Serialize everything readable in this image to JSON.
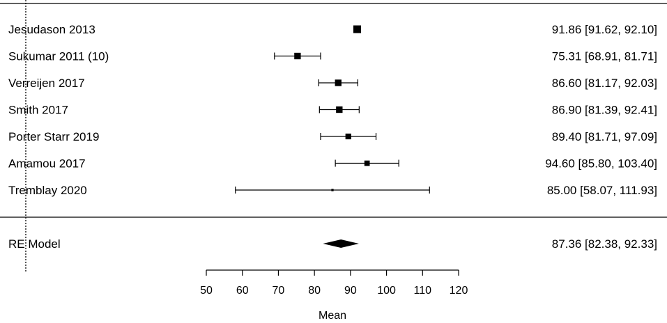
{
  "chart_data": {
    "type": "forest",
    "title": "",
    "xlabel": "Mean",
    "ylabel": "",
    "xlim": [
      50,
      120
    ],
    "xticks": [
      50,
      60,
      70,
      80,
      90,
      100,
      110,
      120
    ],
    "reference_line": 0,
    "studies": [
      {
        "label": "Jesudason 2013",
        "mean": 91.86,
        "ci_low": 91.62,
        "ci_high": 92.1,
        "estimate_text": "91.86 [91.62,  92.10]",
        "weight": 1.0
      },
      {
        "label": "Sukumar 2011 (10)",
        "mean": 75.31,
        "ci_low": 68.91,
        "ci_high": 81.71,
        "estimate_text": "75.31 [68.91,  81.71]",
        "weight": 0.85
      },
      {
        "label": "Verreijen 2017",
        "mean": 86.6,
        "ci_low": 81.17,
        "ci_high": 92.03,
        "estimate_text": "86.60 [81.17,  92.03]",
        "weight": 0.85
      },
      {
        "label": "Smith 2017",
        "mean": 86.9,
        "ci_low": 81.39,
        "ci_high": 92.41,
        "estimate_text": "86.90 [81.39,  92.41]",
        "weight": 0.85
      },
      {
        "label": "Porter Starr 2019",
        "mean": 89.4,
        "ci_low": 81.71,
        "ci_high": 97.09,
        "estimate_text": "89.40 [81.71,  97.09]",
        "weight": 0.75
      },
      {
        "label": "Amamou 2017",
        "mean": 94.6,
        "ci_low": 85.8,
        "ci_high": 103.4,
        "estimate_text": "94.60 [85.80, 103.40]",
        "weight": 0.7
      },
      {
        "label": "Tremblay 2020",
        "mean": 85.0,
        "ci_low": 58.07,
        "ci_high": 111.93,
        "estimate_text": "85.00 [58.07, 111.93]",
        "weight": 0.3
      }
    ],
    "summary": {
      "label": "RE Model",
      "mean": 87.36,
      "ci_low": 82.38,
      "ci_high": 92.33,
      "estimate_text": "87.36 [82.38,  92.33]"
    }
  }
}
